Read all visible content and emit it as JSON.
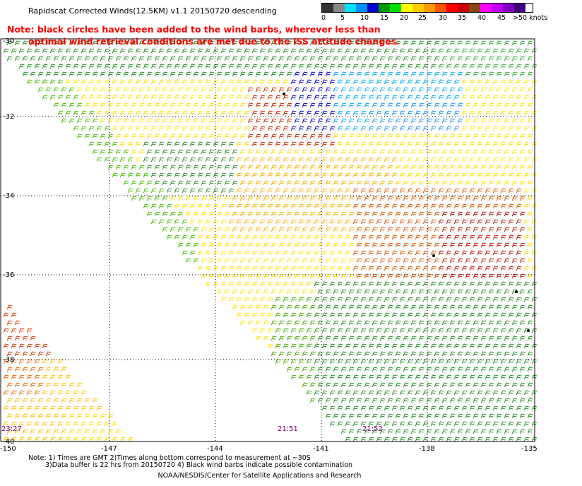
{
  "title": "Rapidscat Corrected Winds(12.5KM) v1.1 20150720 descending",
  "note": {
    "line1": "Note: black circles have been added to the wind barbs, wherever less than",
    "line2": "optimal wind retrieval conditions are met due to the ISS attitude changes."
  },
  "legend": {
    "labels": [
      "0",
      "5",
      "10",
      "15",
      "20",
      "25",
      "30",
      "35",
      "40",
      "45",
      ">50 knots"
    ],
    "colors": [
      "#333333",
      "#888888",
      "#00d4ff",
      "#0000e0",
      "#00aa00",
      "#f0e000",
      "#ffa000",
      "#e04000",
      "#ff00ff",
      "#c000c0",
      "#5000b0",
      "#ff80ff",
      "#ffffff",
      "#b0b0b0",
      "#ff5000",
      "#c00000",
      "#900000",
      "#a000ff"
    ]
  },
  "axes": {
    "lat_labels": [
      "-30",
      "-32",
      "-34",
      "-36",
      "-38",
      "-40"
    ],
    "lon_labels": [
      "-150",
      "-147",
      "-144",
      "-141",
      "-138",
      "-135"
    ]
  },
  "times": [
    "23:27",
    "21:51",
    "21:52"
  ],
  "footer": {
    "line1": "Note: 1) Times are GMT 2)Times along bottom correspond to measurement at ~30S",
    "line2": "3)Data buffer is 22 hrs from 20150720 4) Black wind barbs indicate possible contamination",
    "line3": "NOAA/NESDIS/Center for Satellite Applications and Research"
  }
}
